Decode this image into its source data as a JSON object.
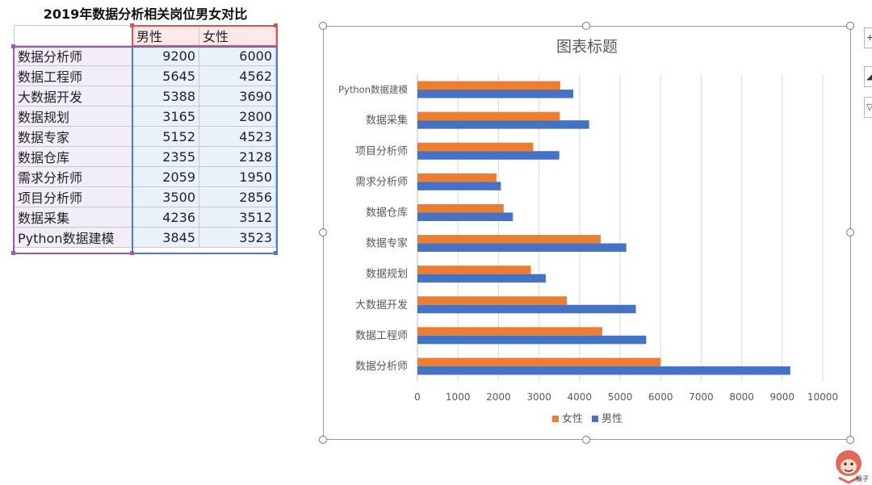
{
  "sheet": {
    "title": "2019年数据分析相关岗位男女对比",
    "header": [
      "",
      "男性",
      "女性"
    ],
    "rows": [
      [
        "数据分析师",
        "9200",
        "6000"
      ],
      [
        "数据工程师",
        "5645",
        "4562"
      ],
      [
        "大数据开发",
        "5388",
        "3690"
      ],
      [
        "数据规划",
        "3165",
        "2800"
      ],
      [
        "数据专家",
        "5152",
        "4523"
      ],
      [
        "数据仓库",
        "2355",
        "2128"
      ],
      [
        "需求分析师",
        "2059",
        "1950"
      ],
      [
        "项目分析师",
        "3500",
        "2856"
      ],
      [
        "数据采集",
        "4236",
        "3512"
      ],
      [
        "Python数据建模",
        "3845",
        "3523"
      ]
    ]
  },
  "side_buttons": [
    {
      "icon": "plus-icon",
      "glyph": "+"
    },
    {
      "icon": "brush-icon",
      "glyph": "◢"
    },
    {
      "icon": "filter-icon",
      "glyph": "▽"
    }
  ],
  "logo": {
    "text": "猴子",
    "icon": "monkey-logo-icon"
  },
  "chart_data": {
    "type": "bar",
    "orientation": "horizontal",
    "title": "图表标题",
    "categories": [
      "数据分析师",
      "数据工程师",
      "大数据开发",
      "数据规划",
      "数据专家",
      "数据仓库",
      "需求分析师",
      "项目分析师",
      "数据采集",
      "Python数据建模"
    ],
    "series": [
      {
        "name": "男性",
        "color": "#4472c4",
        "values": [
          9200,
          5645,
          5388,
          3165,
          5152,
          2355,
          2059,
          3500,
          4236,
          3845
        ]
      },
      {
        "name": "女性",
        "color": "#ed7d31",
        "values": [
          6000,
          4562,
          3690,
          2800,
          4523,
          2128,
          1950,
          2856,
          3512,
          3523
        ]
      }
    ],
    "xlim": [
      0,
      10000
    ],
    "xticks": [
      0,
      1000,
      2000,
      3000,
      4000,
      5000,
      6000,
      7000,
      8000,
      9000,
      10000
    ],
    "legend": [
      "女性",
      "男性"
    ],
    "legend_position": "bottom",
    "grid": "vertical"
  }
}
